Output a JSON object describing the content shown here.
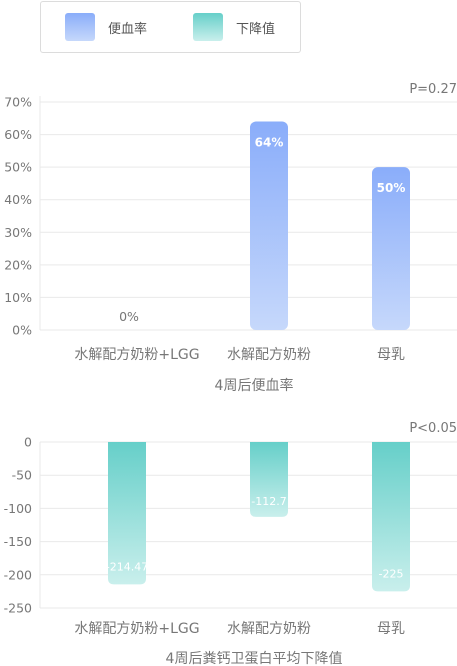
{
  "legend": {
    "items": [
      {
        "label": "便血率",
        "color_top": "#8aadfa",
        "color_bottom": "#c6d8fb"
      },
      {
        "label": "下降值",
        "color_top": "#66cfc9",
        "color_bottom": "#c9efec"
      }
    ]
  },
  "chart_data": [
    {
      "type": "bar",
      "title": "4周后便血率",
      "annotation": "P=0.27",
      "categories": [
        "水解配方奶粉+LGG",
        "水解配方奶粉",
        "母乳"
      ],
      "series": [
        {
          "name": "便血率",
          "values": [
            0,
            64,
            50
          ]
        }
      ],
      "value_labels": [
        "0%",
        "64%",
        "50%"
      ],
      "yticks": [
        "0%",
        "10%",
        "20%",
        "30%",
        "40%",
        "50%",
        "60%",
        "70%"
      ],
      "ylim": [
        0,
        70
      ],
      "grid": true,
      "colors": {
        "top": "#8aadfa",
        "bottom": "#c6d8fb",
        "value_label": "#ffffff",
        "zero_label": "#777777"
      }
    },
    {
      "type": "bar",
      "title": "4周后粪钙卫蛋白平均下降值",
      "annotation": "P<0.05",
      "categories": [
        "水解配方奶粉+LGG",
        "水解配方奶粉",
        "母乳"
      ],
      "series": [
        {
          "name": "下降值",
          "values": [
            -214.47,
            -112.7,
            -225
          ]
        }
      ],
      "value_labels": [
        "-214.47",
        "-112.7",
        "-225"
      ],
      "yticks": [
        "0",
        "-50",
        "-100",
        "-150",
        "-200",
        "-250"
      ],
      "ylim": [
        -250,
        0
      ],
      "grid": true,
      "colors": {
        "top": "#66cfc9",
        "bottom": "#c9efec",
        "value_label": "#ffffff"
      }
    }
  ]
}
